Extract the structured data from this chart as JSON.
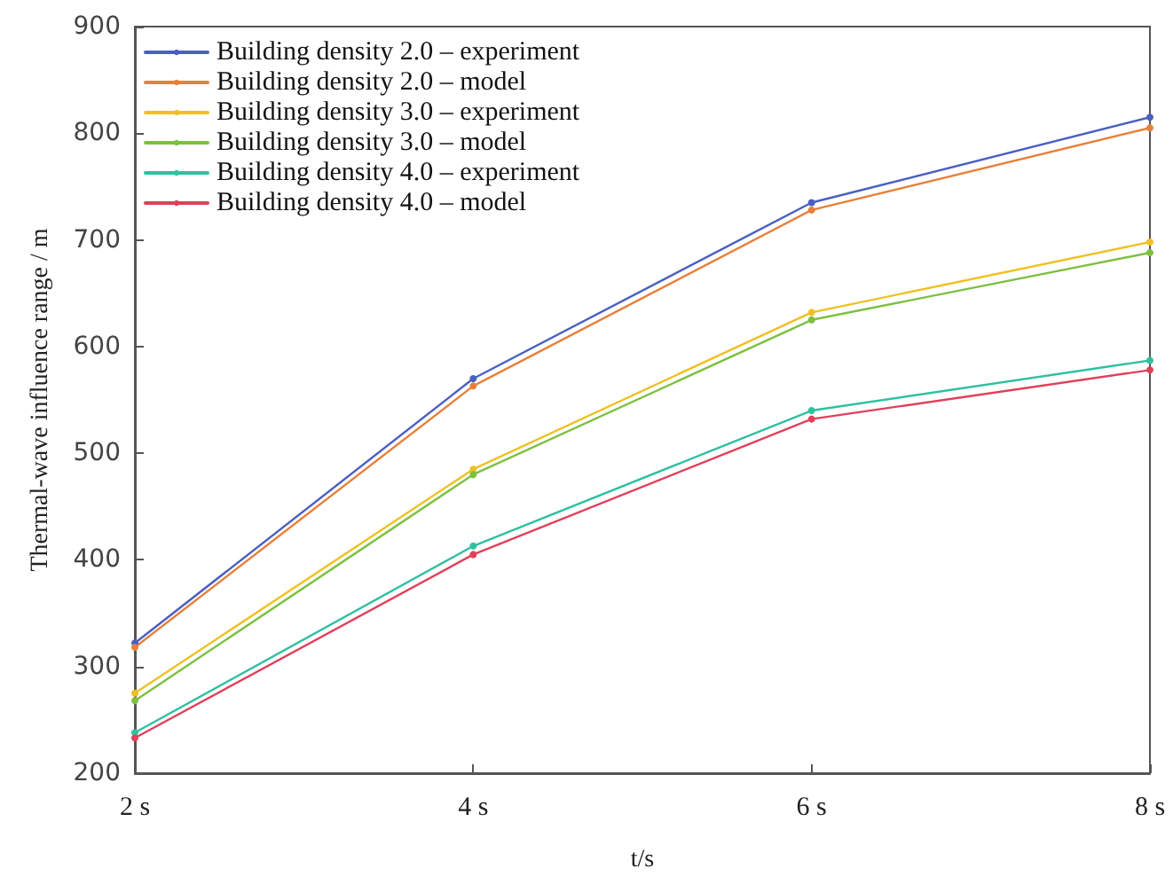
{
  "chart_data": {
    "type": "line",
    "xlabel": "t/s",
    "ylabel": "Thermal-wave influence range / m",
    "categories": [
      "2 s",
      "4 s",
      "6 s",
      "8 s"
    ],
    "series": [
      {
        "name": "Building density 2.0 – experiment",
        "color": "#4a5fc1",
        "values": [
          322,
          570,
          735,
          815
        ]
      },
      {
        "name": "Building density 2.0 – model",
        "color": "#e8803a",
        "values": [
          318,
          563,
          728,
          805
        ]
      },
      {
        "name": "Building density 3.0 – experiment",
        "color": "#f0c020",
        "values": [
          275,
          485,
          632,
          698
        ]
      },
      {
        "name": "Building density 3.0 – model",
        "color": "#7cc040",
        "values": [
          268,
          480,
          625,
          688
        ]
      },
      {
        "name": "Building density 4.0 – experiment",
        "color": "#30c0a0",
        "values": [
          238,
          413,
          540,
          587
        ]
      },
      {
        "name": "Building density 4.0 – model",
        "color": "#e0405a",
        "values": [
          233,
          405,
          532,
          578
        ]
      }
    ],
    "ylim": [
      200,
      900
    ],
    "yticks": [
      200,
      300,
      400,
      500,
      600,
      700,
      800,
      900
    ],
    "grid": false,
    "legend": "top left",
    "marker": "circle",
    "line_style": "solid"
  }
}
